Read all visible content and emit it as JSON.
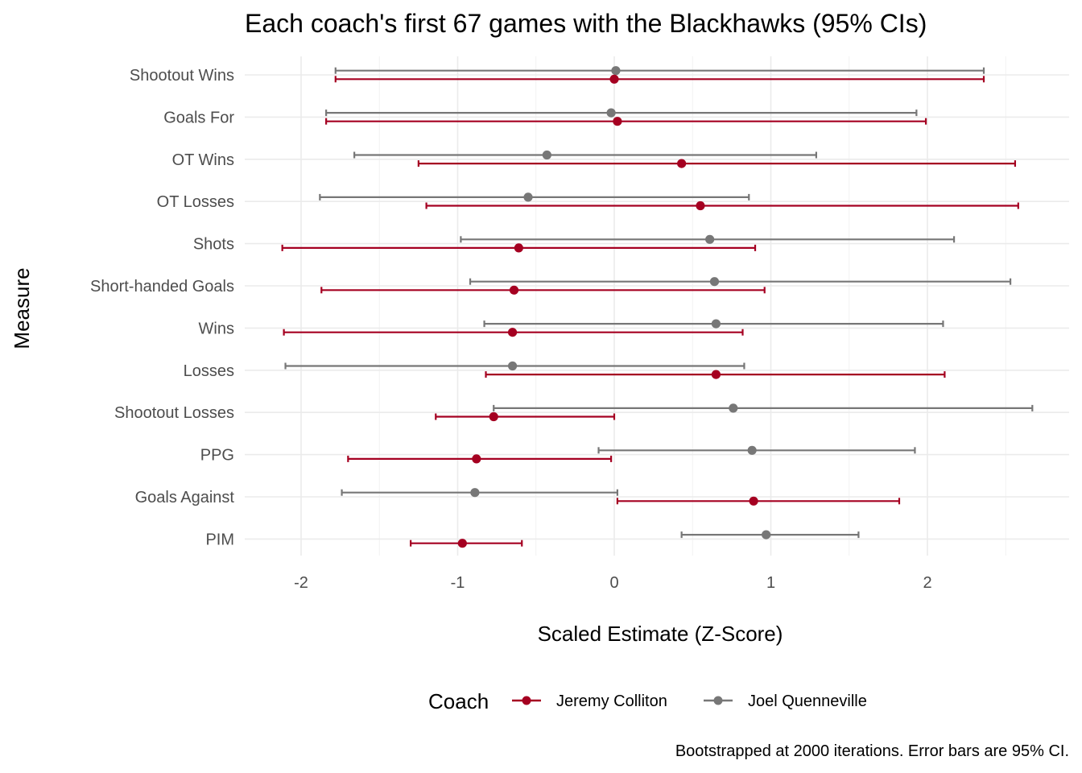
{
  "chart_data": {
    "type": "scatter",
    "title": "Each coach's first 67 games with the Blackhawks (95% CIs)",
    "xlabel": "Scaled Estimate (Z-Score)",
    "ylabel": "Measure",
    "caption": "Bootstrapped at 2000 iterations. Error bars are 95% CI.",
    "xlim": [
      -2.35,
      2.9
    ],
    "x_ticks": [
      -2,
      -1,
      0,
      1,
      2
    ],
    "x_tick_labels": [
      "-2",
      "-1",
      "0",
      "1",
      "2"
    ],
    "grid": true,
    "legend": {
      "title": "Coach",
      "position": "bottom"
    },
    "categories": [
      "Shootout Wins",
      "Goals For",
      "OT Wins",
      "OT Losses",
      "Shots",
      "Short-handed Goals",
      "Wins",
      "Losses",
      "Shootout Losses",
      "PPG",
      "Goals Against",
      "PIM"
    ],
    "series": [
      {
        "name": "Jeremy Colliton",
        "color": "#a50021",
        "estimate": [
          0.0,
          0.02,
          0.43,
          0.55,
          -0.61,
          -0.64,
          -0.65,
          0.65,
          -0.77,
          -0.88,
          0.89,
          -0.97
        ],
        "lower": [
          -1.78,
          -1.84,
          -1.25,
          -1.2,
          -2.12,
          -1.87,
          -2.11,
          -0.82,
          -1.14,
          -1.7,
          0.02,
          -1.3
        ],
        "upper": [
          2.36,
          1.99,
          2.56,
          2.58,
          0.9,
          0.96,
          0.82,
          2.11,
          0.0,
          -0.02,
          1.82,
          -0.59
        ]
      },
      {
        "name": "Joel Quenneville",
        "color": "#777777",
        "estimate": [
          0.01,
          -0.02,
          -0.43,
          -0.55,
          0.61,
          0.64,
          0.65,
          -0.65,
          0.76,
          0.88,
          -0.89,
          0.97
        ],
        "lower": [
          -1.78,
          -1.84,
          -1.66,
          -1.88,
          -0.98,
          -0.92,
          -0.83,
          -2.1,
          -0.77,
          -0.1,
          -1.74,
          0.43
        ],
        "upper": [
          2.36,
          1.93,
          1.29,
          0.86,
          2.17,
          2.53,
          2.1,
          0.83,
          2.67,
          1.92,
          0.02,
          1.56
        ]
      }
    ]
  }
}
